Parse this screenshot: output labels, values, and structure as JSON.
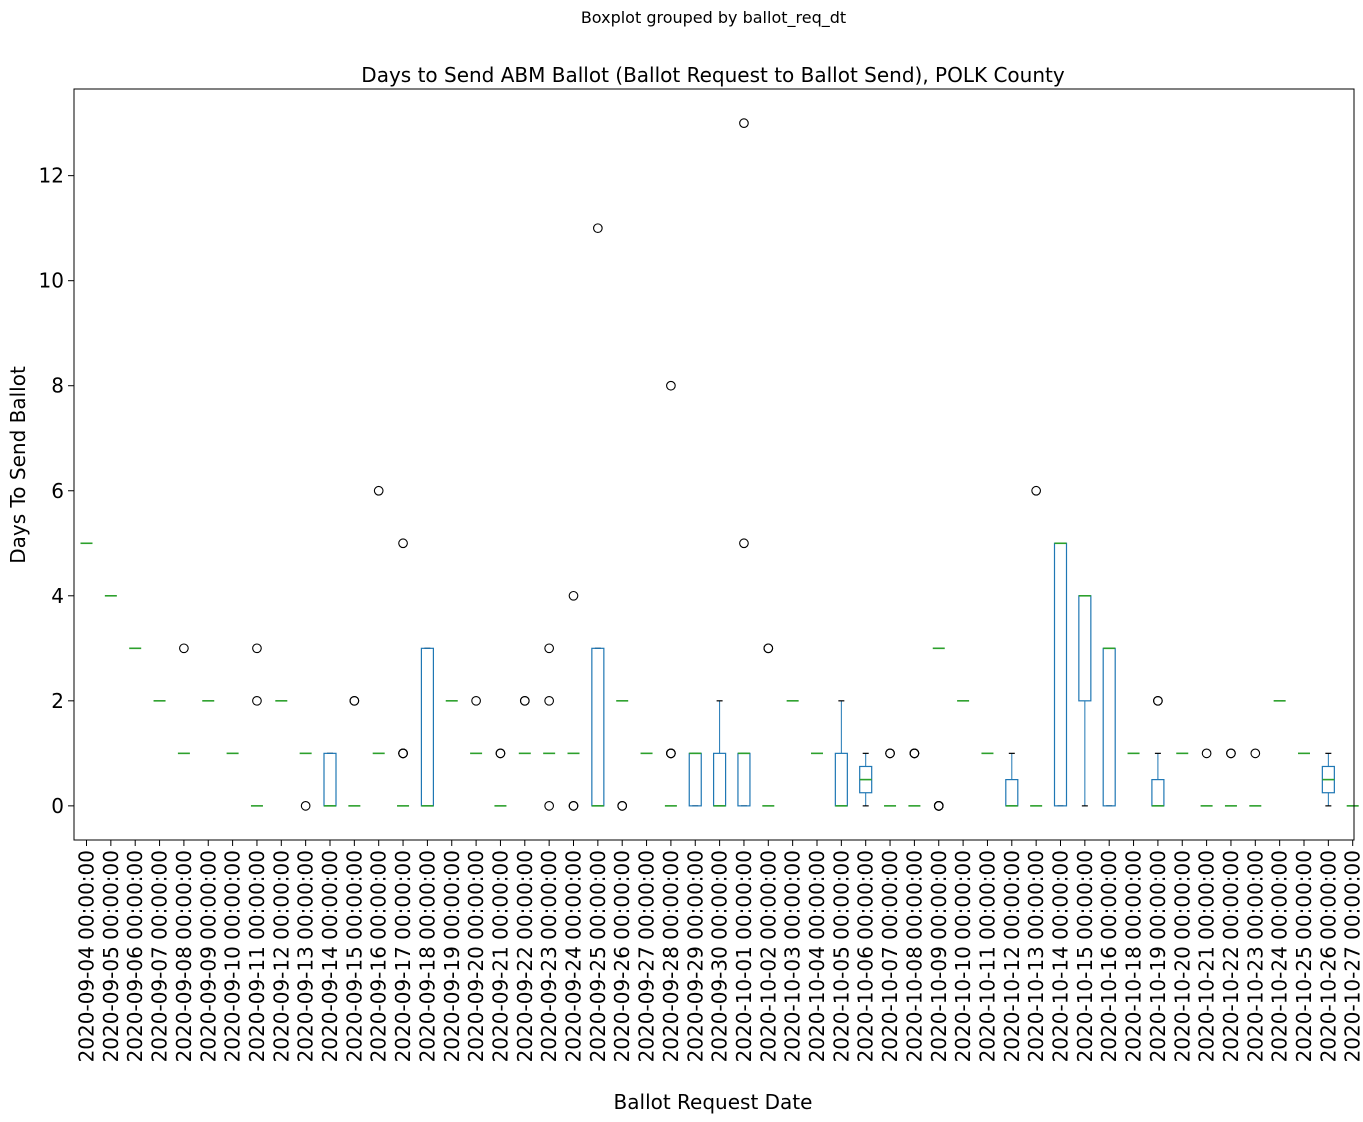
{
  "figure": {
    "suptitle": "Boxplot grouped by ballot_req_dt"
  },
  "chart_data": {
    "type": "box",
    "title": "Days to Send ABM Ballot (Ballot Request to Ballot Send), POLK County",
    "xlabel": "Ballot Request Date",
    "ylabel": "Days To Send Ballot",
    "ylim": [
      -0.65,
      13.65
    ],
    "yticks": [
      0,
      2,
      4,
      6,
      8,
      10,
      12
    ],
    "grid": false,
    "colors": {
      "box": "#1f77b4",
      "median": "#2ca02c",
      "whisker": "#1f77b4",
      "cap": "#000000",
      "flier": "#000000"
    },
    "categories": [
      "2020-09-04 00:00:00",
      "2020-09-05 00:00:00",
      "2020-09-06 00:00:00",
      "2020-09-07 00:00:00",
      "2020-09-08 00:00:00",
      "2020-09-09 00:00:00",
      "2020-09-10 00:00:00",
      "2020-09-11 00:00:00",
      "2020-09-12 00:00:00",
      "2020-09-13 00:00:00",
      "2020-09-14 00:00:00",
      "2020-09-15 00:00:00",
      "2020-09-16 00:00:00",
      "2020-09-17 00:00:00",
      "2020-09-18 00:00:00",
      "2020-09-19 00:00:00",
      "2020-09-20 00:00:00",
      "2020-09-21 00:00:00",
      "2020-09-22 00:00:00",
      "2020-09-23 00:00:00",
      "2020-09-24 00:00:00",
      "2020-09-25 00:00:00",
      "2020-09-26 00:00:00",
      "2020-09-27 00:00:00",
      "2020-09-28 00:00:00",
      "2020-09-29 00:00:00",
      "2020-09-30 00:00:00",
      "2020-10-01 00:00:00",
      "2020-10-02 00:00:00",
      "2020-10-03 00:00:00",
      "2020-10-04 00:00:00",
      "2020-10-05 00:00:00",
      "2020-10-06 00:00:00",
      "2020-10-07 00:00:00",
      "2020-10-08 00:00:00",
      "2020-10-09 00:00:00",
      "2020-10-10 00:00:00",
      "2020-10-11 00:00:00",
      "2020-10-12 00:00:00",
      "2020-10-13 00:00:00",
      "2020-10-14 00:00:00",
      "2020-10-15 00:00:00",
      "2020-10-16 00:00:00",
      "2020-10-18 00:00:00",
      "2020-10-19 00:00:00",
      "2020-10-20 00:00:00",
      "2020-10-21 00:00:00",
      "2020-10-22 00:00:00",
      "2020-10-23 00:00:00",
      "2020-10-24 00:00:00",
      "2020-10-25 00:00:00",
      "2020-10-26 00:00:00",
      "2020-10-27 00:00:00"
    ],
    "boxes": [
      {
        "q1": 5,
        "median": 5,
        "q3": 5,
        "wlo": 5,
        "whi": 5,
        "fliers": []
      },
      {
        "q1": 4,
        "median": 4,
        "q3": 4,
        "wlo": 4,
        "whi": 4,
        "fliers": []
      },
      {
        "q1": 3,
        "median": 3,
        "q3": 3,
        "wlo": 3,
        "whi": 3,
        "fliers": []
      },
      {
        "q1": 2,
        "median": 2,
        "q3": 2,
        "wlo": 2,
        "whi": 2,
        "fliers": []
      },
      {
        "q1": 1,
        "median": 1,
        "q3": 1,
        "wlo": 1,
        "whi": 1,
        "fliers": [
          3
        ]
      },
      {
        "q1": 2,
        "median": 2,
        "q3": 2,
        "wlo": 2,
        "whi": 2,
        "fliers": []
      },
      {
        "q1": 1,
        "median": 1,
        "q3": 1,
        "wlo": 1,
        "whi": 1,
        "fliers": []
      },
      {
        "q1": 0,
        "median": 0,
        "q3": 0,
        "wlo": 0,
        "whi": 0,
        "fliers": [
          2,
          3
        ]
      },
      {
        "q1": 2,
        "median": 2,
        "q3": 2,
        "wlo": 2,
        "whi": 2,
        "fliers": []
      },
      {
        "q1": 1,
        "median": 1,
        "q3": 1,
        "wlo": 1,
        "whi": 1,
        "fliers": [
          0
        ]
      },
      {
        "q1": 0,
        "median": 0,
        "q3": 1,
        "wlo": 0,
        "whi": 1,
        "fliers": []
      },
      {
        "q1": 0,
        "median": 0,
        "q3": 0,
        "wlo": 0,
        "whi": 0,
        "fliers": [
          2,
          2
        ]
      },
      {
        "q1": 1,
        "median": 1,
        "q3": 1,
        "wlo": 1,
        "whi": 1,
        "fliers": [
          6
        ]
      },
      {
        "q1": 0,
        "median": 0,
        "q3": 0,
        "wlo": 0,
        "whi": 0,
        "fliers": [
          1,
          1,
          1,
          5
        ]
      },
      {
        "q1": 0,
        "median": 0,
        "q3": 3,
        "wlo": 0,
        "whi": 3,
        "fliers": []
      },
      {
        "q1": 2,
        "median": 2,
        "q3": 2,
        "wlo": 2,
        "whi": 2,
        "fliers": []
      },
      {
        "q1": 1,
        "median": 1,
        "q3": 1,
        "wlo": 1,
        "whi": 1,
        "fliers": [
          2
        ]
      },
      {
        "q1": 0,
        "median": 0,
        "q3": 0,
        "wlo": 0,
        "whi": 0,
        "fliers": [
          1,
          1
        ]
      },
      {
        "q1": 1,
        "median": 1,
        "q3": 1,
        "wlo": 1,
        "whi": 1,
        "fliers": [
          2,
          2
        ]
      },
      {
        "q1": 1,
        "median": 1,
        "q3": 1,
        "wlo": 1,
        "whi": 1,
        "fliers": [
          0,
          2,
          3
        ]
      },
      {
        "q1": 1,
        "median": 1,
        "q3": 1,
        "wlo": 1,
        "whi": 1,
        "fliers": [
          0,
          0,
          4
        ]
      },
      {
        "q1": 0,
        "median": 0,
        "q3": 3,
        "wlo": 0,
        "whi": 3,
        "fliers": [
          11
        ]
      },
      {
        "q1": 2,
        "median": 2,
        "q3": 2,
        "wlo": 2,
        "whi": 2,
        "fliers": [
          0,
          0
        ]
      },
      {
        "q1": 1,
        "median": 1,
        "q3": 1,
        "wlo": 1,
        "whi": 1,
        "fliers": []
      },
      {
        "q1": 0,
        "median": 0,
        "q3": 0,
        "wlo": 0,
        "whi": 0,
        "fliers": [
          1,
          1,
          1,
          8
        ]
      },
      {
        "q1": 0,
        "median": 1,
        "q3": 1,
        "wlo": 0,
        "whi": 1,
        "fliers": []
      },
      {
        "q1": 0,
        "median": 0,
        "q3": 1,
        "wlo": 0,
        "whi": 2,
        "fliers": []
      },
      {
        "q1": 0,
        "median": 1,
        "q3": 1,
        "wlo": 0,
        "whi": 1,
        "fliers": [
          5,
          13
        ]
      },
      {
        "q1": 0,
        "median": 0,
        "q3": 0,
        "wlo": 0,
        "whi": 0,
        "fliers": [
          3,
          3
        ]
      },
      {
        "q1": 2,
        "median": 2,
        "q3": 2,
        "wlo": 2,
        "whi": 2,
        "fliers": []
      },
      {
        "q1": 1,
        "median": 1,
        "q3": 1,
        "wlo": 1,
        "whi": 1,
        "fliers": []
      },
      {
        "q1": 0,
        "median": 0,
        "q3": 1,
        "wlo": 0,
        "whi": 2,
        "fliers": []
      },
      {
        "q1": 0.25,
        "median": 0.5,
        "q3": 0.75,
        "wlo": 0,
        "whi": 1,
        "fliers": []
      },
      {
        "q1": 0,
        "median": 0,
        "q3": 0,
        "wlo": 0,
        "whi": 0,
        "fliers": [
          1,
          1
        ]
      },
      {
        "q1": 0,
        "median": 0,
        "q3": 0,
        "wlo": 0,
        "whi": 0,
        "fliers": [
          1,
          1,
          1
        ]
      },
      {
        "q1": 3,
        "median": 3,
        "q3": 3,
        "wlo": 3,
        "whi": 3,
        "fliers": [
          0,
          0,
          0,
          0
        ]
      },
      {
        "q1": 2,
        "median": 2,
        "q3": 2,
        "wlo": 2,
        "whi": 2,
        "fliers": []
      },
      {
        "q1": 1,
        "median": 1,
        "q3": 1,
        "wlo": 1,
        "whi": 1,
        "fliers": []
      },
      {
        "q1": 0,
        "median": 0,
        "q3": 0.5,
        "wlo": 0,
        "whi": 1,
        "fliers": []
      },
      {
        "q1": 0,
        "median": 0,
        "q3": 0,
        "wlo": 0,
        "whi": 0,
        "fliers": [
          6
        ]
      },
      {
        "q1": 0,
        "median": 5,
        "q3": 5,
        "wlo": 0,
        "whi": 5,
        "fliers": []
      },
      {
        "q1": 2,
        "median": 4,
        "q3": 4,
        "wlo": 0,
        "whi": 4,
        "fliers": []
      },
      {
        "q1": 0,
        "median": 3,
        "q3": 3,
        "wlo": 0,
        "whi": 3,
        "fliers": []
      },
      {
        "q1": 1,
        "median": 1,
        "q3": 1,
        "wlo": 1,
        "whi": 1,
        "fliers": []
      },
      {
        "q1": 0,
        "median": 0,
        "q3": 0.5,
        "wlo": 0,
        "whi": 1,
        "fliers": [
          2,
          2
        ]
      },
      {
        "q1": 1,
        "median": 1,
        "q3": 1,
        "wlo": 1,
        "whi": 1,
        "fliers": []
      },
      {
        "q1": 0,
        "median": 0,
        "q3": 0,
        "wlo": 0,
        "whi": 0,
        "fliers": [
          1
        ]
      },
      {
        "q1": 0,
        "median": 0,
        "q3": 0,
        "wlo": 0,
        "whi": 0,
        "fliers": [
          1,
          1
        ]
      },
      {
        "q1": 0,
        "median": 0,
        "q3": 0,
        "wlo": 0,
        "whi": 0,
        "fliers": [
          1
        ]
      },
      {
        "q1": 2,
        "median": 2,
        "q3": 2,
        "wlo": 2,
        "whi": 2,
        "fliers": []
      },
      {
        "q1": 1,
        "median": 1,
        "q3": 1,
        "wlo": 1,
        "whi": 1,
        "fliers": []
      },
      {
        "q1": 0.25,
        "median": 0.5,
        "q3": 0.75,
        "wlo": 0,
        "whi": 1,
        "fliers": []
      },
      {
        "q1": 0,
        "median": 0,
        "q3": 0,
        "wlo": 0,
        "whi": 0,
        "fliers": []
      }
    ]
  }
}
